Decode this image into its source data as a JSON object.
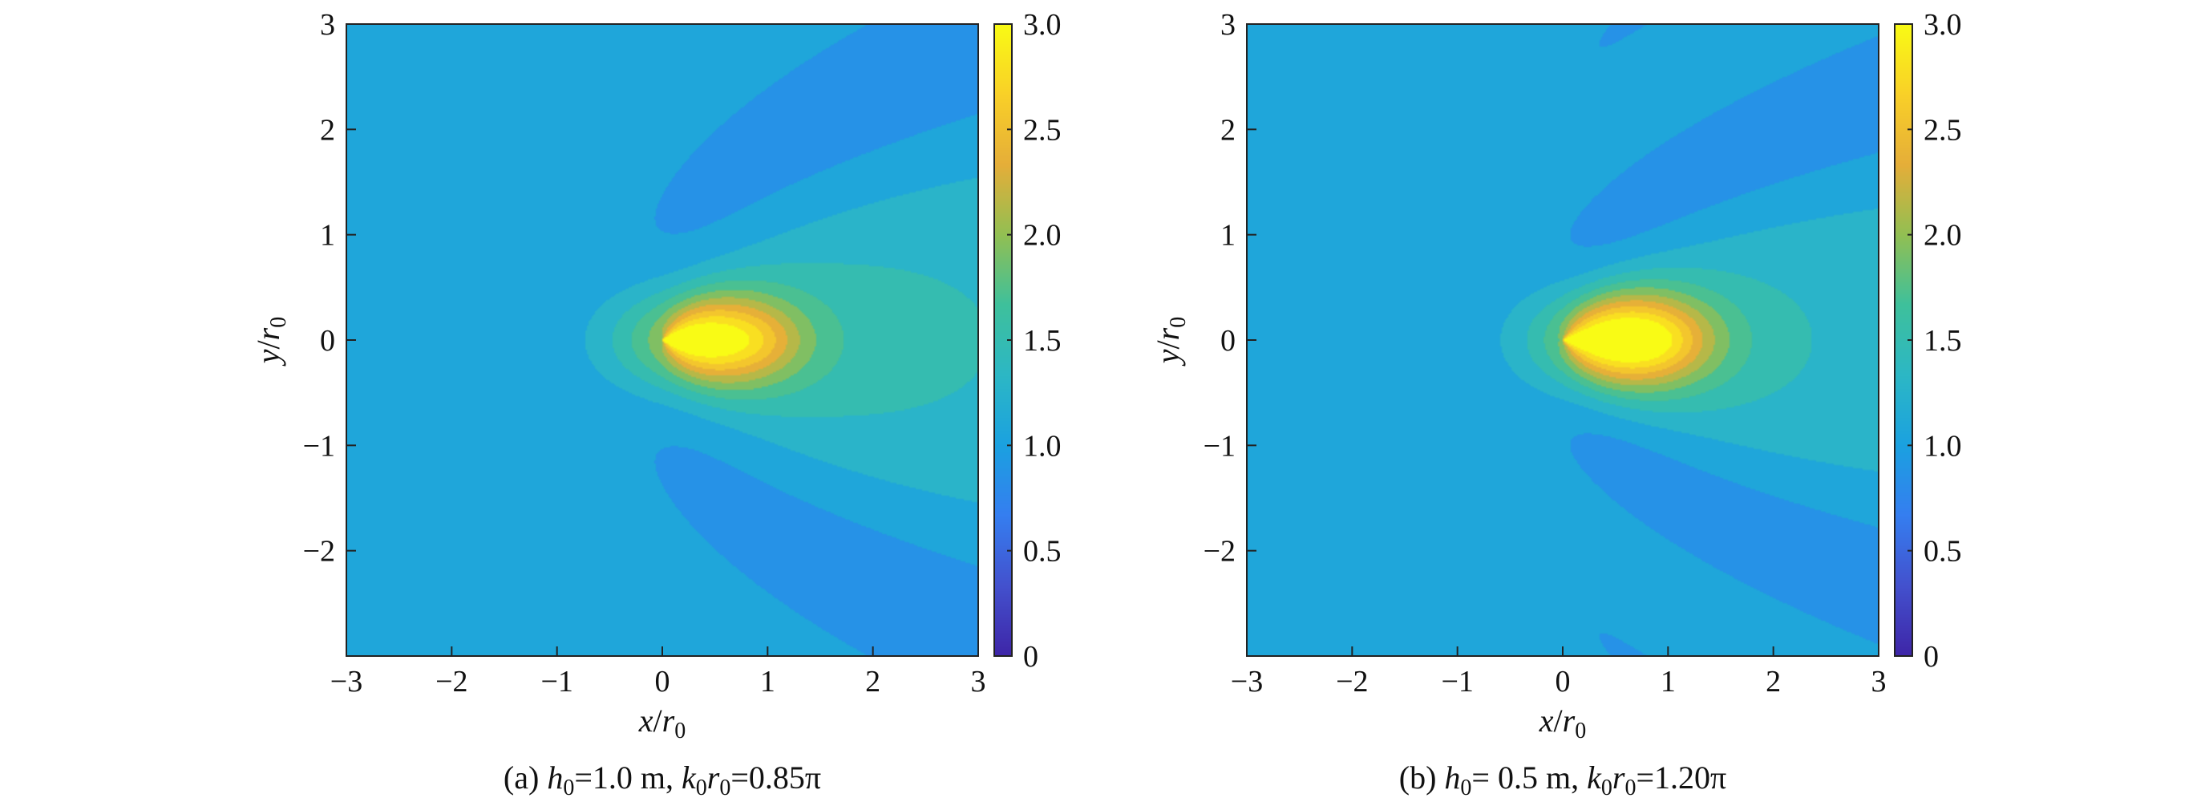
{
  "chart_data": [
    {
      "type": "heatmap",
      "panel": "a",
      "caption_parts": [
        "(a) ",
        "h",
        "0",
        "=1.0 m, ",
        "k",
        "0",
        "r",
        "0",
        "=0.85π"
      ],
      "xlabel_parts": [
        "x",
        "/",
        "r",
        "0"
      ],
      "ylabel_parts": [
        "y",
        "/",
        "r",
        "0"
      ],
      "xlim": [
        -3,
        3
      ],
      "ylim": [
        -3,
        3
      ],
      "xticks": [
        -3,
        -2,
        -1,
        0,
        1,
        2,
        3
      ],
      "yticks": [
        -3,
        -2,
        -1,
        0,
        1,
        2,
        3
      ],
      "xtick_labels": [
        "−3",
        "−2",
        "−1",
        "0",
        "1",
        "2",
        "3"
      ],
      "ytick_labels": [
        "",
        "−2",
        "−1",
        "0",
        "1",
        "2",
        "3"
      ],
      "colorbar": {
        "range": [
          0,
          3.0
        ],
        "ticks": [
          0,
          0.5,
          1.0,
          1.5,
          2.0,
          2.5,
          3.0
        ],
        "tick_labels": [
          "0",
          "0.5",
          "1.0",
          "1.5",
          "2.0",
          "2.5",
          "3.0"
        ]
      },
      "field": {
        "k": 2.67,
        "peak_x": 0.4,
        "peak_value": 2.45,
        "background": 1.0
      }
    },
    {
      "type": "heatmap",
      "panel": "b",
      "caption_parts": [
        "(b) ",
        "h",
        "0",
        "= 0.5 m, ",
        "k",
        "0",
        "r",
        "0",
        "=1.20π"
      ],
      "xlabel_parts": [
        "x",
        "/",
        "r",
        "0"
      ],
      "ylabel_parts": [
        "y",
        "/",
        "r",
        "0"
      ],
      "xlim": [
        -3,
        3
      ],
      "ylim": [
        -3,
        3
      ],
      "xticks": [
        -3,
        -2,
        -1,
        0,
        1,
        2,
        3
      ],
      "yticks": [
        -3,
        -2,
        -1,
        0,
        1,
        2,
        3
      ],
      "xtick_labels": [
        "−3",
        "−2",
        "−1",
        "0",
        "1",
        "2",
        "3"
      ],
      "ytick_labels": [
        "",
        "−2",
        "−1",
        "0",
        "1",
        "2",
        "3"
      ],
      "colorbar": {
        "range": [
          0,
          3.0
        ],
        "ticks": [
          0,
          0.5,
          1.0,
          1.5,
          2.0,
          2.5,
          3.0
        ],
        "tick_labels": [
          "0",
          "0.5",
          "1.0",
          "1.5",
          "2.0",
          "2.5",
          "3.0"
        ]
      },
      "field": {
        "k": 3.77,
        "peak_x": 0.6,
        "peak_value": 2.7,
        "background": 1.0
      }
    }
  ],
  "colormap": [
    "#3e26a8",
    "#4352ce",
    "#357ef0",
    "#1ba1e0",
    "#2cb7c5",
    "#3ec09c",
    "#92bf53",
    "#e5ae39",
    "#f9d028",
    "#f9fb15"
  ]
}
